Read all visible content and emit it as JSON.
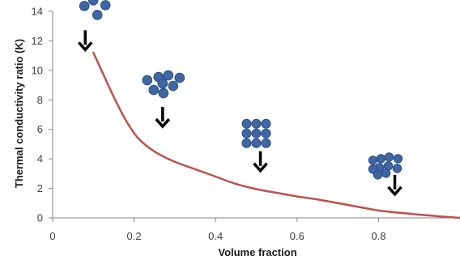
{
  "colors": {
    "line": "#C0504D",
    "axis": "#868686",
    "particle_fill": "#3F67A6",
    "particle_edge": "#2A4A80",
    "arrow": "#000000"
  },
  "icons": {
    "cluster_1": "dispersed-particles-icon",
    "cluster_2": "loose-cluster-icon",
    "cluster_3": "square-packed-cluster-icon",
    "cluster_4": "dense-cluster-icon",
    "arrow": "down-arrow-icon"
  },
  "chart_data": {
    "type": "line",
    "title": "",
    "xlabel": "Volume fraction",
    "ylabel": "Thermal conductivity ratio (K)",
    "xlim": [
      0,
      1.0
    ],
    "ylim": [
      0,
      14
    ],
    "xticks": [
      "0",
      "0.2",
      "0.4",
      "0.6",
      "0.8"
    ],
    "xtick_values": [
      0,
      0.2,
      0.4,
      0.6,
      0.8
    ],
    "yticks": [
      "0",
      "2",
      "4",
      "6",
      "8",
      "10",
      "12",
      "14"
    ],
    "ytick_values": [
      0,
      2,
      4,
      6,
      8,
      10,
      12,
      14
    ],
    "grid": false,
    "legend": "none",
    "series": [
      {
        "x": [
          0.1,
          0.12,
          0.15,
          0.18,
          0.21,
          0.25,
          0.3,
          0.35,
          0.4,
          0.45,
          0.5,
          0.55,
          0.6,
          0.65,
          0.7,
          0.75,
          0.8,
          0.85,
          0.9,
          0.95,
          1.0
        ],
        "y": [
          11.2,
          10.0,
          8.2,
          6.6,
          5.4,
          4.5,
          3.8,
          3.3,
          2.8,
          2.3,
          1.95,
          1.7,
          1.45,
          1.25,
          1.0,
          0.75,
          0.5,
          0.35,
          0.22,
          0.1,
          0.0
        ]
      }
    ],
    "annotations": [
      {
        "kind": "particles",
        "icon": "cluster_1",
        "x": 0.08,
        "y": 11.4
      },
      {
        "kind": "particles",
        "icon": "cluster_2",
        "x": 0.27,
        "y": 6.2
      },
      {
        "kind": "particles",
        "icon": "cluster_3",
        "x": 0.51,
        "y": 3.2
      },
      {
        "kind": "particles",
        "icon": "cluster_4",
        "x": 0.84,
        "y": 1.6
      }
    ]
  }
}
